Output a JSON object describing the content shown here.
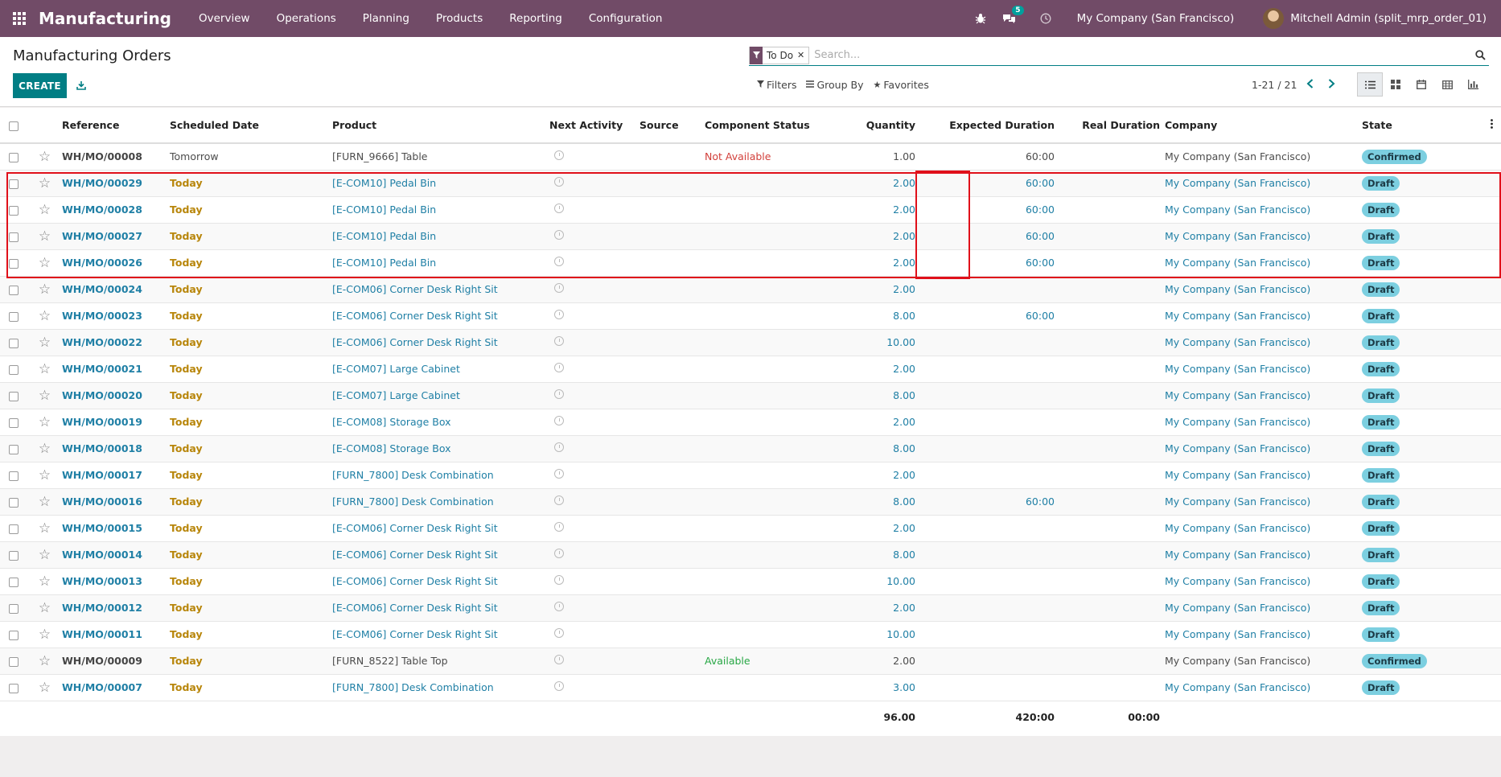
{
  "navbar": {
    "brand": "Manufacturing",
    "menu": [
      "Overview",
      "Operations",
      "Planning",
      "Products",
      "Reporting",
      "Configuration"
    ],
    "messages_count": "5",
    "company": "My Company (San Francisco)",
    "user": "Mitchell Admin (split_mrp_order_01)"
  },
  "control_panel": {
    "title": "Manufacturing Orders",
    "create_label": "CREATE",
    "facet_label": "To Do",
    "search_placeholder": "Search...",
    "filters_label": "Filters",
    "group_by_label": "Group By",
    "favorites_label": "Favorites",
    "pager": "1-21 / 21"
  },
  "columns": {
    "reference": "Reference",
    "scheduled_date": "Scheduled Date",
    "product": "Product",
    "next_activity": "Next Activity",
    "source": "Source",
    "component_status": "Component Status",
    "quantity": "Quantity",
    "expected_duration": "Expected Duration",
    "real_duration": "Real Duration",
    "company": "Company",
    "state": "State"
  },
  "rows": [
    {
      "ref": "WH/MO/00008",
      "date": "Tomorrow",
      "product": "[FURN_9666] Table",
      "component_status": "Not Available",
      "qty": "1.00",
      "expected": "60:00",
      "company": "My Company (San Francisco)",
      "state": "Confirmed"
    },
    {
      "ref": "WH/MO/00029",
      "date": "Today",
      "product": "[E-COM10] Pedal Bin",
      "component_status": "",
      "qty": "2.00",
      "expected": "60:00",
      "company": "My Company (San Francisco)",
      "state": "Draft"
    },
    {
      "ref": "WH/MO/00028",
      "date": "Today",
      "product": "[E-COM10] Pedal Bin",
      "component_status": "",
      "qty": "2.00",
      "expected": "60:00",
      "company": "My Company (San Francisco)",
      "state": "Draft"
    },
    {
      "ref": "WH/MO/00027",
      "date": "Today",
      "product": "[E-COM10] Pedal Bin",
      "component_status": "",
      "qty": "2.00",
      "expected": "60:00",
      "company": "My Company (San Francisco)",
      "state": "Draft"
    },
    {
      "ref": "WH/MO/00026",
      "date": "Today",
      "product": "[E-COM10] Pedal Bin",
      "component_status": "",
      "qty": "2.00",
      "expected": "60:00",
      "company": "My Company (San Francisco)",
      "state": "Draft"
    },
    {
      "ref": "WH/MO/00024",
      "date": "Today",
      "product": "[E-COM06] Corner Desk Right Sit",
      "component_status": "",
      "qty": "2.00",
      "expected": "",
      "company": "My Company (San Francisco)",
      "state": "Draft"
    },
    {
      "ref": "WH/MO/00023",
      "date": "Today",
      "product": "[E-COM06] Corner Desk Right Sit",
      "component_status": "",
      "qty": "8.00",
      "expected": "60:00",
      "company": "My Company (San Francisco)",
      "state": "Draft"
    },
    {
      "ref": "WH/MO/00022",
      "date": "Today",
      "product": "[E-COM06] Corner Desk Right Sit",
      "component_status": "",
      "qty": "10.00",
      "expected": "",
      "company": "My Company (San Francisco)",
      "state": "Draft"
    },
    {
      "ref": "WH/MO/00021",
      "date": "Today",
      "product": "[E-COM07] Large Cabinet",
      "component_status": "",
      "qty": "2.00",
      "expected": "",
      "company": "My Company (San Francisco)",
      "state": "Draft"
    },
    {
      "ref": "WH/MO/00020",
      "date": "Today",
      "product": "[E-COM07] Large Cabinet",
      "component_status": "",
      "qty": "8.00",
      "expected": "",
      "company": "My Company (San Francisco)",
      "state": "Draft"
    },
    {
      "ref": "WH/MO/00019",
      "date": "Today",
      "product": "[E-COM08] Storage Box",
      "component_status": "",
      "qty": "2.00",
      "expected": "",
      "company": "My Company (San Francisco)",
      "state": "Draft"
    },
    {
      "ref": "WH/MO/00018",
      "date": "Today",
      "product": "[E-COM08] Storage Box",
      "component_status": "",
      "qty": "8.00",
      "expected": "",
      "company": "My Company (San Francisco)",
      "state": "Draft"
    },
    {
      "ref": "WH/MO/00017",
      "date": "Today",
      "product": "[FURN_7800] Desk Combination",
      "component_status": "",
      "qty": "2.00",
      "expected": "",
      "company": "My Company (San Francisco)",
      "state": "Draft"
    },
    {
      "ref": "WH/MO/00016",
      "date": "Today",
      "product": "[FURN_7800] Desk Combination",
      "component_status": "",
      "qty": "8.00",
      "expected": "60:00",
      "company": "My Company (San Francisco)",
      "state": "Draft"
    },
    {
      "ref": "WH/MO/00015",
      "date": "Today",
      "product": "[E-COM06] Corner Desk Right Sit",
      "component_status": "",
      "qty": "2.00",
      "expected": "",
      "company": "My Company (San Francisco)",
      "state": "Draft"
    },
    {
      "ref": "WH/MO/00014",
      "date": "Today",
      "product": "[E-COM06] Corner Desk Right Sit",
      "component_status": "",
      "qty": "8.00",
      "expected": "",
      "company": "My Company (San Francisco)",
      "state": "Draft"
    },
    {
      "ref": "WH/MO/00013",
      "date": "Today",
      "product": "[E-COM06] Corner Desk Right Sit",
      "component_status": "",
      "qty": "10.00",
      "expected": "",
      "company": "My Company (San Francisco)",
      "state": "Draft"
    },
    {
      "ref": "WH/MO/00012",
      "date": "Today",
      "product": "[E-COM06] Corner Desk Right Sit",
      "component_status": "",
      "qty": "2.00",
      "expected": "",
      "company": "My Company (San Francisco)",
      "state": "Draft"
    },
    {
      "ref": "WH/MO/00011",
      "date": "Today",
      "product": "[E-COM06] Corner Desk Right Sit",
      "component_status": "",
      "qty": "10.00",
      "expected": "",
      "company": "My Company (San Francisco)",
      "state": "Draft"
    },
    {
      "ref": "WH/MO/00009",
      "date": "Today",
      "product": "[FURN_8522] Table Top",
      "component_status": "Available",
      "qty": "2.00",
      "expected": "",
      "company": "My Company (San Francisco)",
      "state": "Confirmed"
    },
    {
      "ref": "WH/MO/00007",
      "date": "Today",
      "product": "[FURN_7800] Desk Combination",
      "component_status": "",
      "qty": "3.00",
      "expected": "",
      "company": "My Company (San Francisco)",
      "state": "Draft"
    }
  ],
  "totals": {
    "qty": "96.00",
    "expected": "420:00",
    "real": "00:00"
  },
  "colors": {
    "navbar": "#714b67",
    "primary": "#017e84",
    "link": "#1f7fa5",
    "today": "#b8860b",
    "highlight": "#e0101a"
  }
}
